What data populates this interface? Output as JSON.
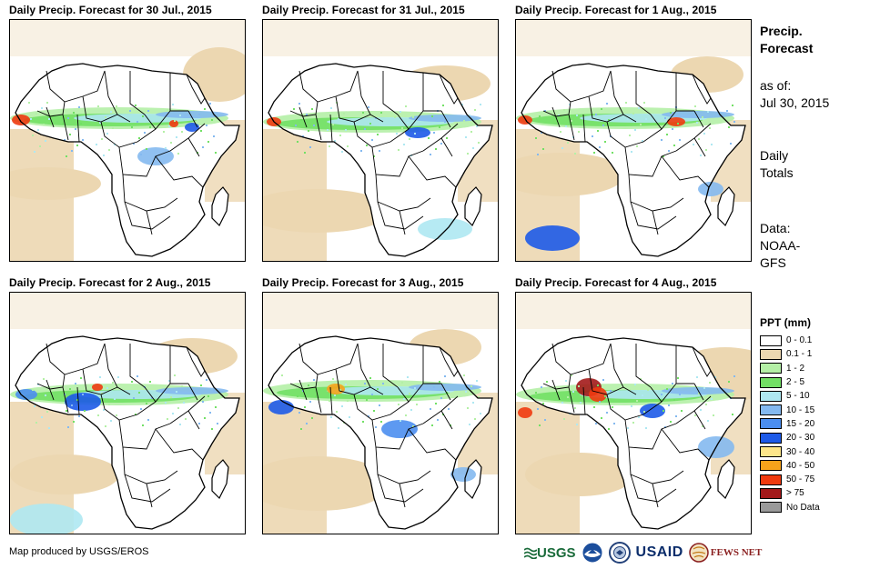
{
  "panels": [
    {
      "title": "Daily Precip. Forecast for 30 Jul., 2015"
    },
    {
      "title": "Daily Precip. Forecast for 31 Jul., 2015"
    },
    {
      "title": "Daily Precip. Forecast for 1 Aug., 2015"
    },
    {
      "title": "Daily Precip. Forecast for 2 Aug., 2015"
    },
    {
      "title": "Daily Precip. Forecast for 3 Aug., 2015"
    },
    {
      "title": "Daily Precip. Forecast for 4 Aug., 2015"
    }
  ],
  "sidebar": {
    "heading_line1": "Precip.",
    "heading_line2": "Forecast",
    "as_of_label": "as of:",
    "as_of_date": "Jul 30, 2015",
    "totals_line1": "Daily",
    "totals_line2": "Totals",
    "data_line1": "Data:",
    "data_line2": "NOAA-",
    "data_line3": "GFS"
  },
  "legend": {
    "title": "PPT (mm)",
    "items": [
      {
        "label": "0 - 0.1",
        "color": "#ffffff"
      },
      {
        "label": "0.1 - 1",
        "color": "#ecd7b1"
      },
      {
        "label": "1 - 2",
        "color": "#b4f0a6"
      },
      {
        "label": "2 - 5",
        "color": "#72e065"
      },
      {
        "label": "5 - 10",
        "color": "#aee8f2"
      },
      {
        "label": "10 - 15",
        "color": "#84b9f0"
      },
      {
        "label": "15 - 20",
        "color": "#4b8ef0"
      },
      {
        "label": "20 - 30",
        "color": "#1d5ae8"
      },
      {
        "label": "30 - 40",
        "color": "#fde68a"
      },
      {
        "label": "40 - 50",
        "color": "#f6a31b"
      },
      {
        "label": "50 - 75",
        "color": "#f03a0f"
      },
      {
        "label": "> 75",
        "color": "#a3191a"
      },
      {
        "label": "No Data",
        "color": "#9a9a9a"
      }
    ]
  },
  "footer": {
    "credit": "Map produced by USGS/EROS",
    "logo_usgs": "USGS",
    "logo_usaid": "USAID",
    "logo_fewsnet": "FEWS NET"
  }
}
